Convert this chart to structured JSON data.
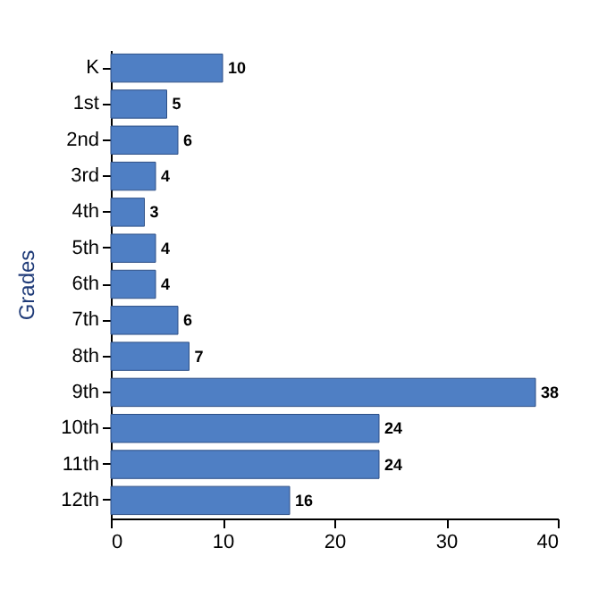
{
  "chart_data": {
    "type": "bar",
    "orientation": "horizontal",
    "ylabel": "Grades",
    "categories": [
      "K",
      "1st",
      "2nd",
      "3rd",
      "4th",
      "5th",
      "6th",
      "7th",
      "8th",
      "9th",
      "10th",
      "11th",
      "12th"
    ],
    "values": [
      10,
      5,
      6,
      4,
      3,
      4,
      4,
      6,
      7,
      38,
      24,
      24,
      16
    ],
    "color": "#4f7fc4",
    "xlim": [
      0,
      40
    ],
    "xticks": [
      0,
      10,
      20,
      30,
      40
    ],
    "data_labels": true,
    "grid": false
  }
}
